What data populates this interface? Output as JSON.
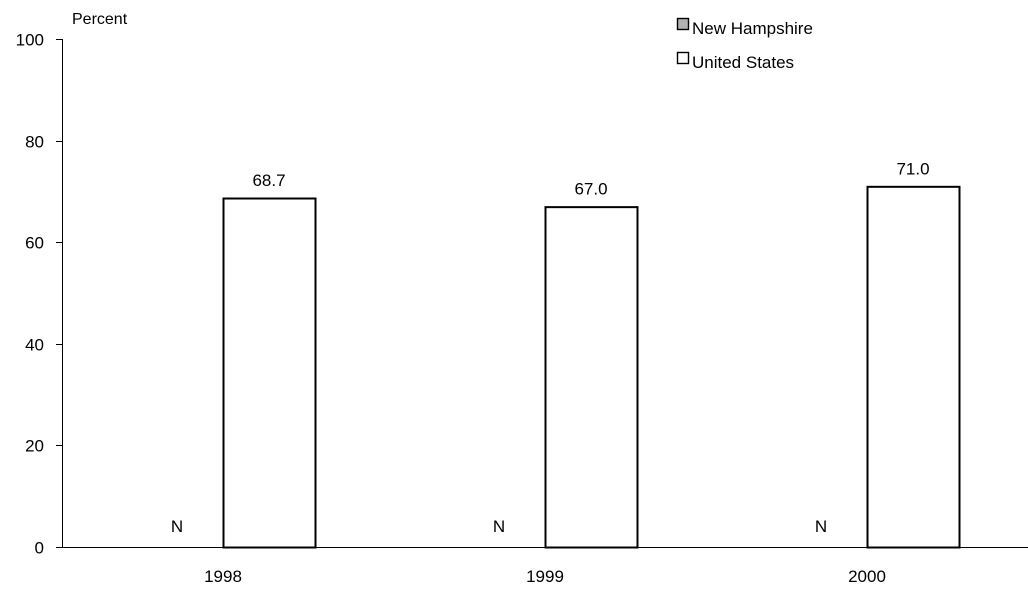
{
  "chart_data": {
    "type": "bar",
    "ylabel": "Percent",
    "xlabel": "",
    "ylim": [
      0,
      100
    ],
    "yticks": [
      "0",
      "20",
      "40",
      "60",
      "80",
      "100"
    ],
    "categories": [
      "1998",
      "1999",
      "2000"
    ],
    "series": [
      {
        "name": "New Hampshire",
        "values": [
          null,
          null,
          null
        ],
        "value_labels": [
          "N",
          "N",
          "N"
        ],
        "color": "#b3b3b3"
      },
      {
        "name": "United States",
        "values": [
          68.7,
          67.0,
          71.0
        ],
        "value_labels": [
          "68.7",
          "67.0",
          "71.0"
        ],
        "color": "#ffffff"
      }
    ],
    "grid": false,
    "legend": "top-right"
  }
}
